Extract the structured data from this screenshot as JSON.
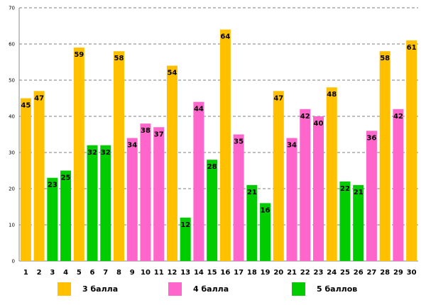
{
  "chart_data": {
    "type": "bar",
    "title": "",
    "xlabel": "",
    "ylabel": "",
    "ylim": [
      0,
      70
    ],
    "yticks": [
      0,
      10,
      20,
      30,
      40,
      50,
      60,
      70
    ],
    "grid": "horizontal dashed",
    "categories": [
      "1",
      "2",
      "3",
      "4",
      "5",
      "6",
      "7",
      "8",
      "9",
      "10",
      "11",
      "12",
      "13",
      "14",
      "15",
      "16",
      "17",
      "18",
      "19",
      "20",
      "21",
      "22",
      "23",
      "24",
      "25",
      "26",
      "27",
      "28",
      "29",
      "30"
    ],
    "values": [
      45,
      47,
      23,
      25,
      59,
      32,
      32,
      58,
      34,
      38,
      37,
      54,
      12,
      44,
      28,
      64,
      35,
      21,
      16,
      47,
      34,
      42,
      40,
      48,
      22,
      21,
      36,
      58,
      42,
      61
    ],
    "groups": [
      "3 балла",
      "3 балла",
      "5 баллов",
      "5 баллов",
      "3 балла",
      "5 баллов",
      "5 баллов",
      "3 балла",
      "4 балла",
      "4 балла",
      "4 балла",
      "3 балла",
      "5 баллов",
      "4 балла",
      "5 баллов",
      "3 балла",
      "4 балла",
      "5 баллов",
      "5 баллов",
      "3 балла",
      "4 балла",
      "4 балла",
      "4 балла",
      "3 балла",
      "5 баллов",
      "5 баллов",
      "4 балла",
      "3 балла",
      "4 балла",
      "3 балла"
    ],
    "legend": [
      {
        "name": "3 балла",
        "color": "#FFC000"
      },
      {
        "name": "4 балла",
        "color": "#FF66CC"
      },
      {
        "name": "5 баллов",
        "color": "#00CC00"
      }
    ],
    "legend_position": "bottom"
  }
}
